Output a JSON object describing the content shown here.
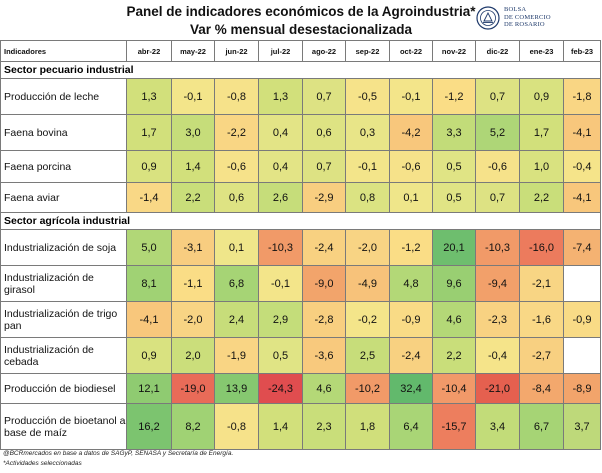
{
  "title_line1": "Panel de indicadores económicos de la Agroindustria*",
  "title_line2": "Var % mensual desestacionalizada",
  "logo_lines": [
    "BOLSA",
    "DE COMERCIO",
    "DE ROSARIO"
  ],
  "header": {
    "indicators": "Indicadores",
    "months": [
      "abr-22",
      "may-22",
      "jun-22",
      "jul-22",
      "ago-22",
      "sep-22",
      "oct-22",
      "nov-22",
      "dic-22",
      "ene-23",
      "feb-23"
    ]
  },
  "sections": [
    {
      "title": "Sector pecuario industrial",
      "rows": [
        {
          "label": "Producción de leche",
          "values": [
            "1,3",
            "-0,1",
            "-0,8",
            "1,3",
            "0,7",
            "-0,5",
            "-0,1",
            "-1,2",
            "0,7",
            "0,9",
            "-1,8"
          ],
          "colors": [
            "#d2e07b",
            "#f3e58a",
            "#f6e28a",
            "#d2e07b",
            "#dde283",
            "#f6e38a",
            "#f3e58a",
            "#fadd86",
            "#dde283",
            "#d9e280",
            "#f9d684"
          ],
          "height": 36
        },
        {
          "label": "Faena bovina",
          "values": [
            "1,7",
            "3,0",
            "-2,2",
            "0,4",
            "0,6",
            "0,3",
            "-4,2",
            "3,3",
            "5,2",
            "1,7",
            "-4,1"
          ],
          "colors": [
            "#d2e07b",
            "#c6dd7a",
            "#f9d684",
            "#e3e486",
            "#dee383",
            "#e8e588",
            "#f8c77c",
            "#c2dc79",
            "#aed677",
            "#d2e07b",
            "#f8c77c"
          ],
          "height": 36
        },
        {
          "label": "Faena porcina",
          "values": [
            "0,9",
            "1,4",
            "-0,6",
            "0,4",
            "0,7",
            "-0,1",
            "-0,6",
            "0,5",
            "-0,6",
            "1,0",
            "-0,4"
          ],
          "colors": [
            "#d9e280",
            "#d2e07b",
            "#f6e28a",
            "#e3e486",
            "#dde283",
            "#f3e58a",
            "#f6e28a",
            "#e0e485",
            "#f6e28a",
            "#d9e280",
            "#f5e48a"
          ],
          "height": 32
        },
        {
          "label": "Faena aviar",
          "values": [
            "-1,4",
            "2,2",
            "0,6",
            "2,6",
            "-2,9",
            "0,8",
            "0,1",
            "0,5",
            "0,7",
            "2,2",
            "-4,1"
          ],
          "colors": [
            "#f9d886",
            "#c9de7a",
            "#dee383",
            "#c6dd7a",
            "#f8ce80",
            "#dbe382",
            "#efe68a",
            "#e0e485",
            "#dde283",
            "#c9de7a",
            "#f8c77c"
          ],
          "height": 30
        }
      ]
    },
    {
      "title": "Sector agrícola industrial",
      "rows": [
        {
          "label": "Industrialización de soja",
          "values": [
            "5,0",
            "-3,1",
            "0,1",
            "-10,3",
            "-2,4",
            "-2,0",
            "-1,2",
            "20,1",
            "-10,3",
            "-16,0",
            "-7,4"
          ],
          "colors": [
            "#b1d777",
            "#f8cd80",
            "#efe68a",
            "#f19a68",
            "#f8d181",
            "#f8d484",
            "#fadd86",
            "#6ebe6e",
            "#f19a68",
            "#ec7b5d",
            "#f4b272"
          ],
          "height": 36
        },
        {
          "label": "Industrialización de girasol",
          "values": [
            "8,1",
            "-1,1",
            "6,8",
            "-0,1",
            "-9,0",
            "-4,9",
            "4,8",
            "9,6",
            "-9,4",
            "-2,1"
          ],
          "colors": [
            "#a0d274",
            "#fadd86",
            "#a6d475",
            "#f3e58a",
            "#f2a46b",
            "#f7c27a",
            "#b3d877",
            "#99cf72",
            "#f2a06a",
            "#f8d584"
          ],
          "height": 36
        },
        {
          "label": "Industrialización de trigo pan",
          "values": [
            "-4,1",
            "-2,0",
            "2,4",
            "2,9",
            "-2,8",
            "-0,2",
            "-0,9",
            "4,6",
            "-2,3",
            "-1,6",
            "-0,9"
          ],
          "colors": [
            "#f8c77c",
            "#f8d484",
            "#c7dd7a",
            "#c4dd7a",
            "#f8cf80",
            "#f4e58a",
            "#f9db86",
            "#b4d877",
            "#f8d282",
            "#f9d886",
            "#f9db86"
          ],
          "height": 36
        },
        {
          "label": "Industrialización de cebada",
          "values": [
            "0,9",
            "2,0",
            "-1,9",
            "0,5",
            "-3,6",
            "2,5",
            "-2,4",
            "2,2",
            "-0,4",
            "-2,7"
          ],
          "colors": [
            "#d9e280",
            "#cbde7b",
            "#f9d584",
            "#e0e485",
            "#f8c97d",
            "#c7dd7a",
            "#f8d181",
            "#c9de7a",
            "#f5e48a",
            "#f8d081"
          ],
          "height": 36
        },
        {
          "label": "Producción de biodiesel",
          "values": [
            "12,1",
            "-19,0",
            "13,9",
            "-24,3",
            "4,6",
            "-10,2",
            "32,4",
            "-10,4",
            "-21,0",
            "-8,4",
            "-8,9"
          ],
          "colors": [
            "#8fcb71",
            "#e96b58",
            "#86c870",
            "#e04d4f",
            "#b4d877",
            "#f19a68",
            "#62b96c",
            "#f19969",
            "#e5604f",
            "#f3a86d",
            "#f2a46b"
          ],
          "height": 30
        },
        {
          "label": "Producción de bioetanol a base de maíz",
          "values": [
            "16,2",
            "8,2",
            "-0,8",
            "1,4",
            "2,3",
            "1,8",
            "6,4",
            "-15,7",
            "3,4",
            "6,7",
            "3,7"
          ],
          "colors": [
            "#7cc46f",
            "#a0d274",
            "#f6e28a",
            "#d2e07b",
            "#c9de7a",
            "#d0df7b",
            "#a9d576",
            "#ed7e5e",
            "#c2dc79",
            "#a6d475",
            "#bed97a"
          ],
          "height": 46
        }
      ]
    }
  ],
  "footnote_source": "@BCRmercados en base a datos de SAGyP, SENASA y Secretaría de Energía.",
  "footnote_note": "*Actividades seleccionadas"
}
